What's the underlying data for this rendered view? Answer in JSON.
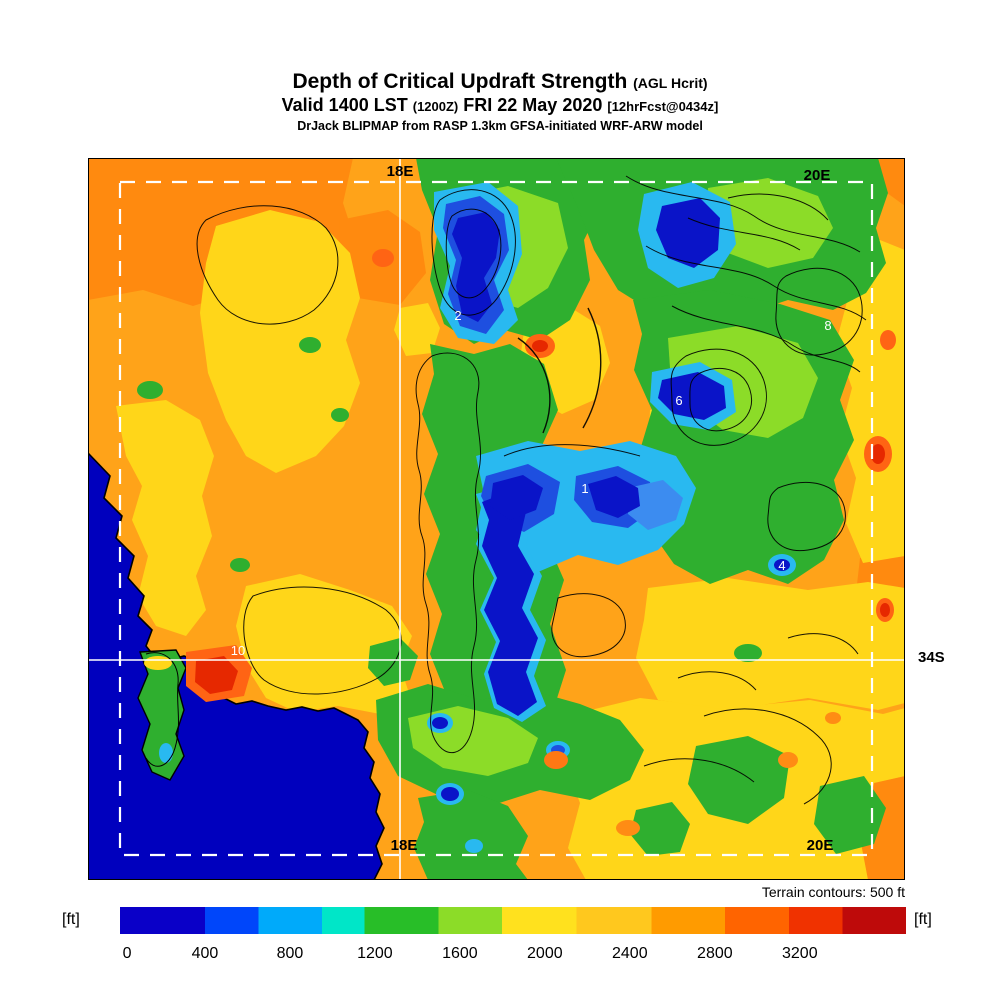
{
  "title": {
    "line1": "Depth of Critical Updraft Strength",
    "line1_suffix": "(AGL Hcrit)",
    "line2_part1": "Valid 1400 LST",
    "line2_small1": "(1200Z)",
    "line2_part2": "FRI 22 May 2020",
    "line2_small2": "[12hrFcst@0434z]",
    "line3": "DrJack BLIPMAP from RASP 1.3km GFSA-initiated WRF-ARW model"
  },
  "map": {
    "grid_labels": {
      "top_18e": "18E",
      "top_right_20e": "20E",
      "bottom_18e": "18E",
      "bottom_20e": "20E",
      "right_34s": "34S"
    },
    "value_labels": [
      "2",
      "8",
      "6",
      "1",
      "4",
      "10"
    ]
  },
  "footer": {
    "terrain_note": "Terrain contours: 500 ft",
    "unit_left": "[ft]",
    "unit_right": "[ft]"
  },
  "colorbar": {
    "ticks": [
      {
        "label": "0",
        "pos": 0.9
      },
      {
        "label": "400",
        "pos": 10.81
      },
      {
        "label": "800",
        "pos": 21.62
      },
      {
        "label": "1200",
        "pos": 32.43
      },
      {
        "label": "1600",
        "pos": 43.24
      },
      {
        "label": "2000",
        "pos": 54.05
      },
      {
        "label": "2400",
        "pos": 64.86
      },
      {
        "label": "2800",
        "pos": 75.68
      },
      {
        "label": "3200",
        "pos": 86.49
      }
    ],
    "segments": [
      {
        "color": "#0A00C8",
        "from": 0,
        "to": 10.8
      },
      {
        "color": "#0046FA",
        "from": 10.8,
        "to": 17.6
      },
      {
        "color": "#00AAFA",
        "from": 17.6,
        "to": 25.7
      },
      {
        "color": "#00E6C8",
        "from": 25.7,
        "to": 31.1
      },
      {
        "color": "#28BE28",
        "from": 31.1,
        "to": 40.5
      },
      {
        "color": "#8CDC28",
        "from": 40.5,
        "to": 48.6
      },
      {
        "color": "#FFE11E",
        "from": 48.6,
        "to": 58.1
      },
      {
        "color": "#FFC81E",
        "from": 58.1,
        "to": 67.6
      },
      {
        "color": "#FF9B00",
        "from": 67.6,
        "to": 77.0
      },
      {
        "color": "#FF6400",
        "from": 77.0,
        "to": 85.1
      },
      {
        "color": "#F03200",
        "from": 85.1,
        "to": 91.9
      },
      {
        "color": "#BE0A0A",
        "from": 91.9,
        "to": 100
      }
    ]
  },
  "palette": {
    "ocean": "#0000BE",
    "plains_orange": "#FFA319",
    "yellow": "#FFD619",
    "green": "#2FAF2F",
    "cyan": "#29B9F0",
    "dark_blue": "#0A14C8",
    "red": "#E62800",
    "grid_white": "#FFFFFF"
  }
}
